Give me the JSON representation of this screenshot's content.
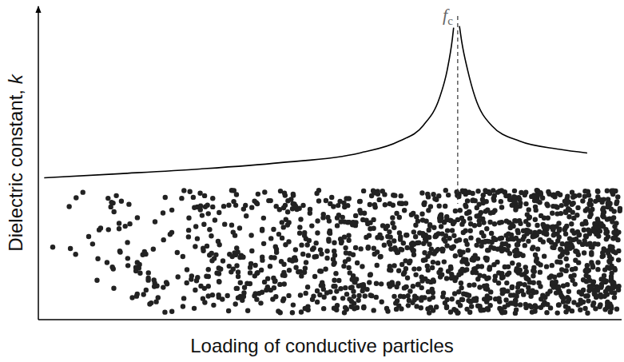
{
  "chart_data": {
    "type": "line",
    "xlabel": "Loading of conductive particles",
    "ylabel": "Dielectric constant, k",
    "xlim": [
      0,
      100
    ],
    "ylim": [
      0,
      100
    ],
    "xticks": [],
    "yticks": [],
    "tick_labels": false,
    "grid": false,
    "color": "#000000",
    "line_style": "solid",
    "x": [
      1.0,
      14.0,
      27.7,
      41.4,
      55.1,
      61.9,
      66.0,
      68.8,
      70.1,
      71.0,
      71.2,
      71.9,
      72.2,
      72.6,
      73.6,
      74.9,
      77.7,
      82.5,
      89.3,
      94.1
    ],
    "values": [
      45.3,
      46.6,
      48.1,
      50.1,
      53.2,
      57.0,
      62.0,
      70.9,
      79.7,
      89.9,
      93.2,
      null,
      93.7,
      88.6,
      79.7,
      70.9,
      62.0,
      57.0,
      54.4,
      53.2
    ],
    "annotations": [
      {
        "text": "f",
        "subscript": "c",
        "x": 71.9
      }
    ]
  }
}
